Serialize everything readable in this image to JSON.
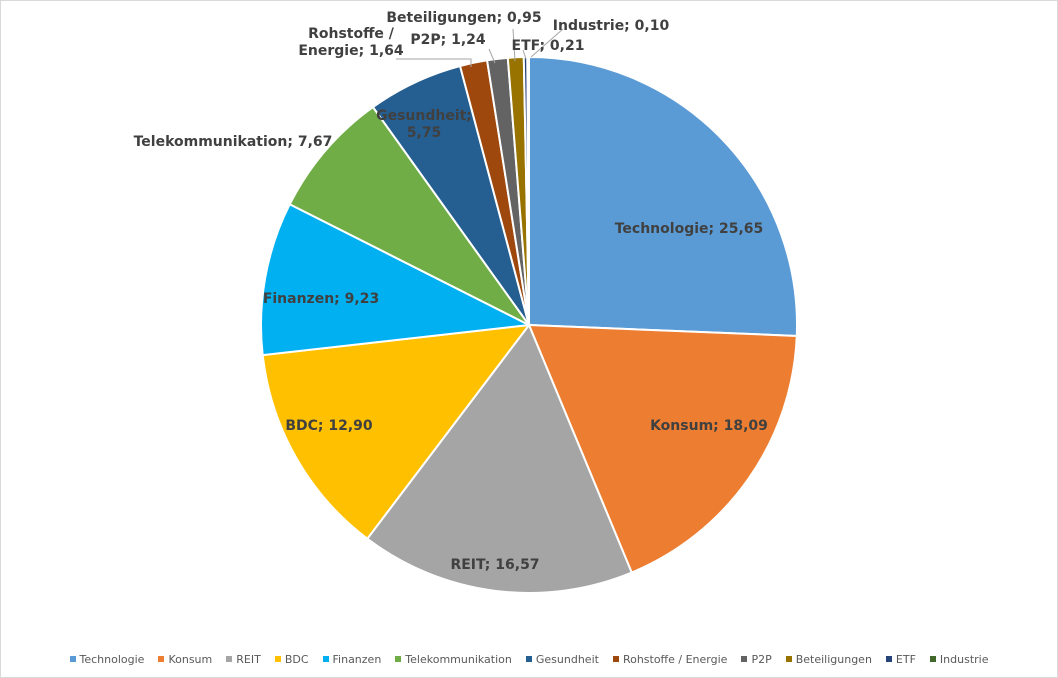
{
  "chart_data": {
    "type": "pie",
    "title": "",
    "label_separator": "; ",
    "legend_position": "bottom",
    "slices": [
      {
        "name": "Technologie",
        "value": 25.65,
        "label": "25,65",
        "color": "#5B9BD5"
      },
      {
        "name": "Konsum",
        "value": 18.09,
        "label": "18,09",
        "color": "#ED7D31"
      },
      {
        "name": "REIT",
        "value": 16.57,
        "label": "16,57",
        "color": "#A5A5A5"
      },
      {
        "name": "BDC",
        "value": 12.9,
        "label": "12,90",
        "color": "#FFC000"
      },
      {
        "name": "Finanzen",
        "value": 9.23,
        "label": "9,23",
        "color": "#00B0F0"
      },
      {
        "name": "Telekommunikation",
        "value": 7.67,
        "label": "7,67",
        "color": "#70AD47"
      },
      {
        "name": "Gesundheit",
        "value": 5.75,
        "label": "5,75",
        "color": "#255E91"
      },
      {
        "name": "Rohstoffe / Energie",
        "value": 1.64,
        "label": "1,64",
        "color": "#9E480E"
      },
      {
        "name": "P2P",
        "value": 1.24,
        "label": "1,24",
        "color": "#636363"
      },
      {
        "name": "Beteiligungen",
        "value": 0.95,
        "label": "0,95",
        "color": "#997300"
      },
      {
        "name": "ETF",
        "value": 0.21,
        "label": "0,21",
        "color": "#264478"
      },
      {
        "name": "Industrie",
        "value": 0.1,
        "label": "0,10",
        "color": "#43682B"
      }
    ]
  }
}
